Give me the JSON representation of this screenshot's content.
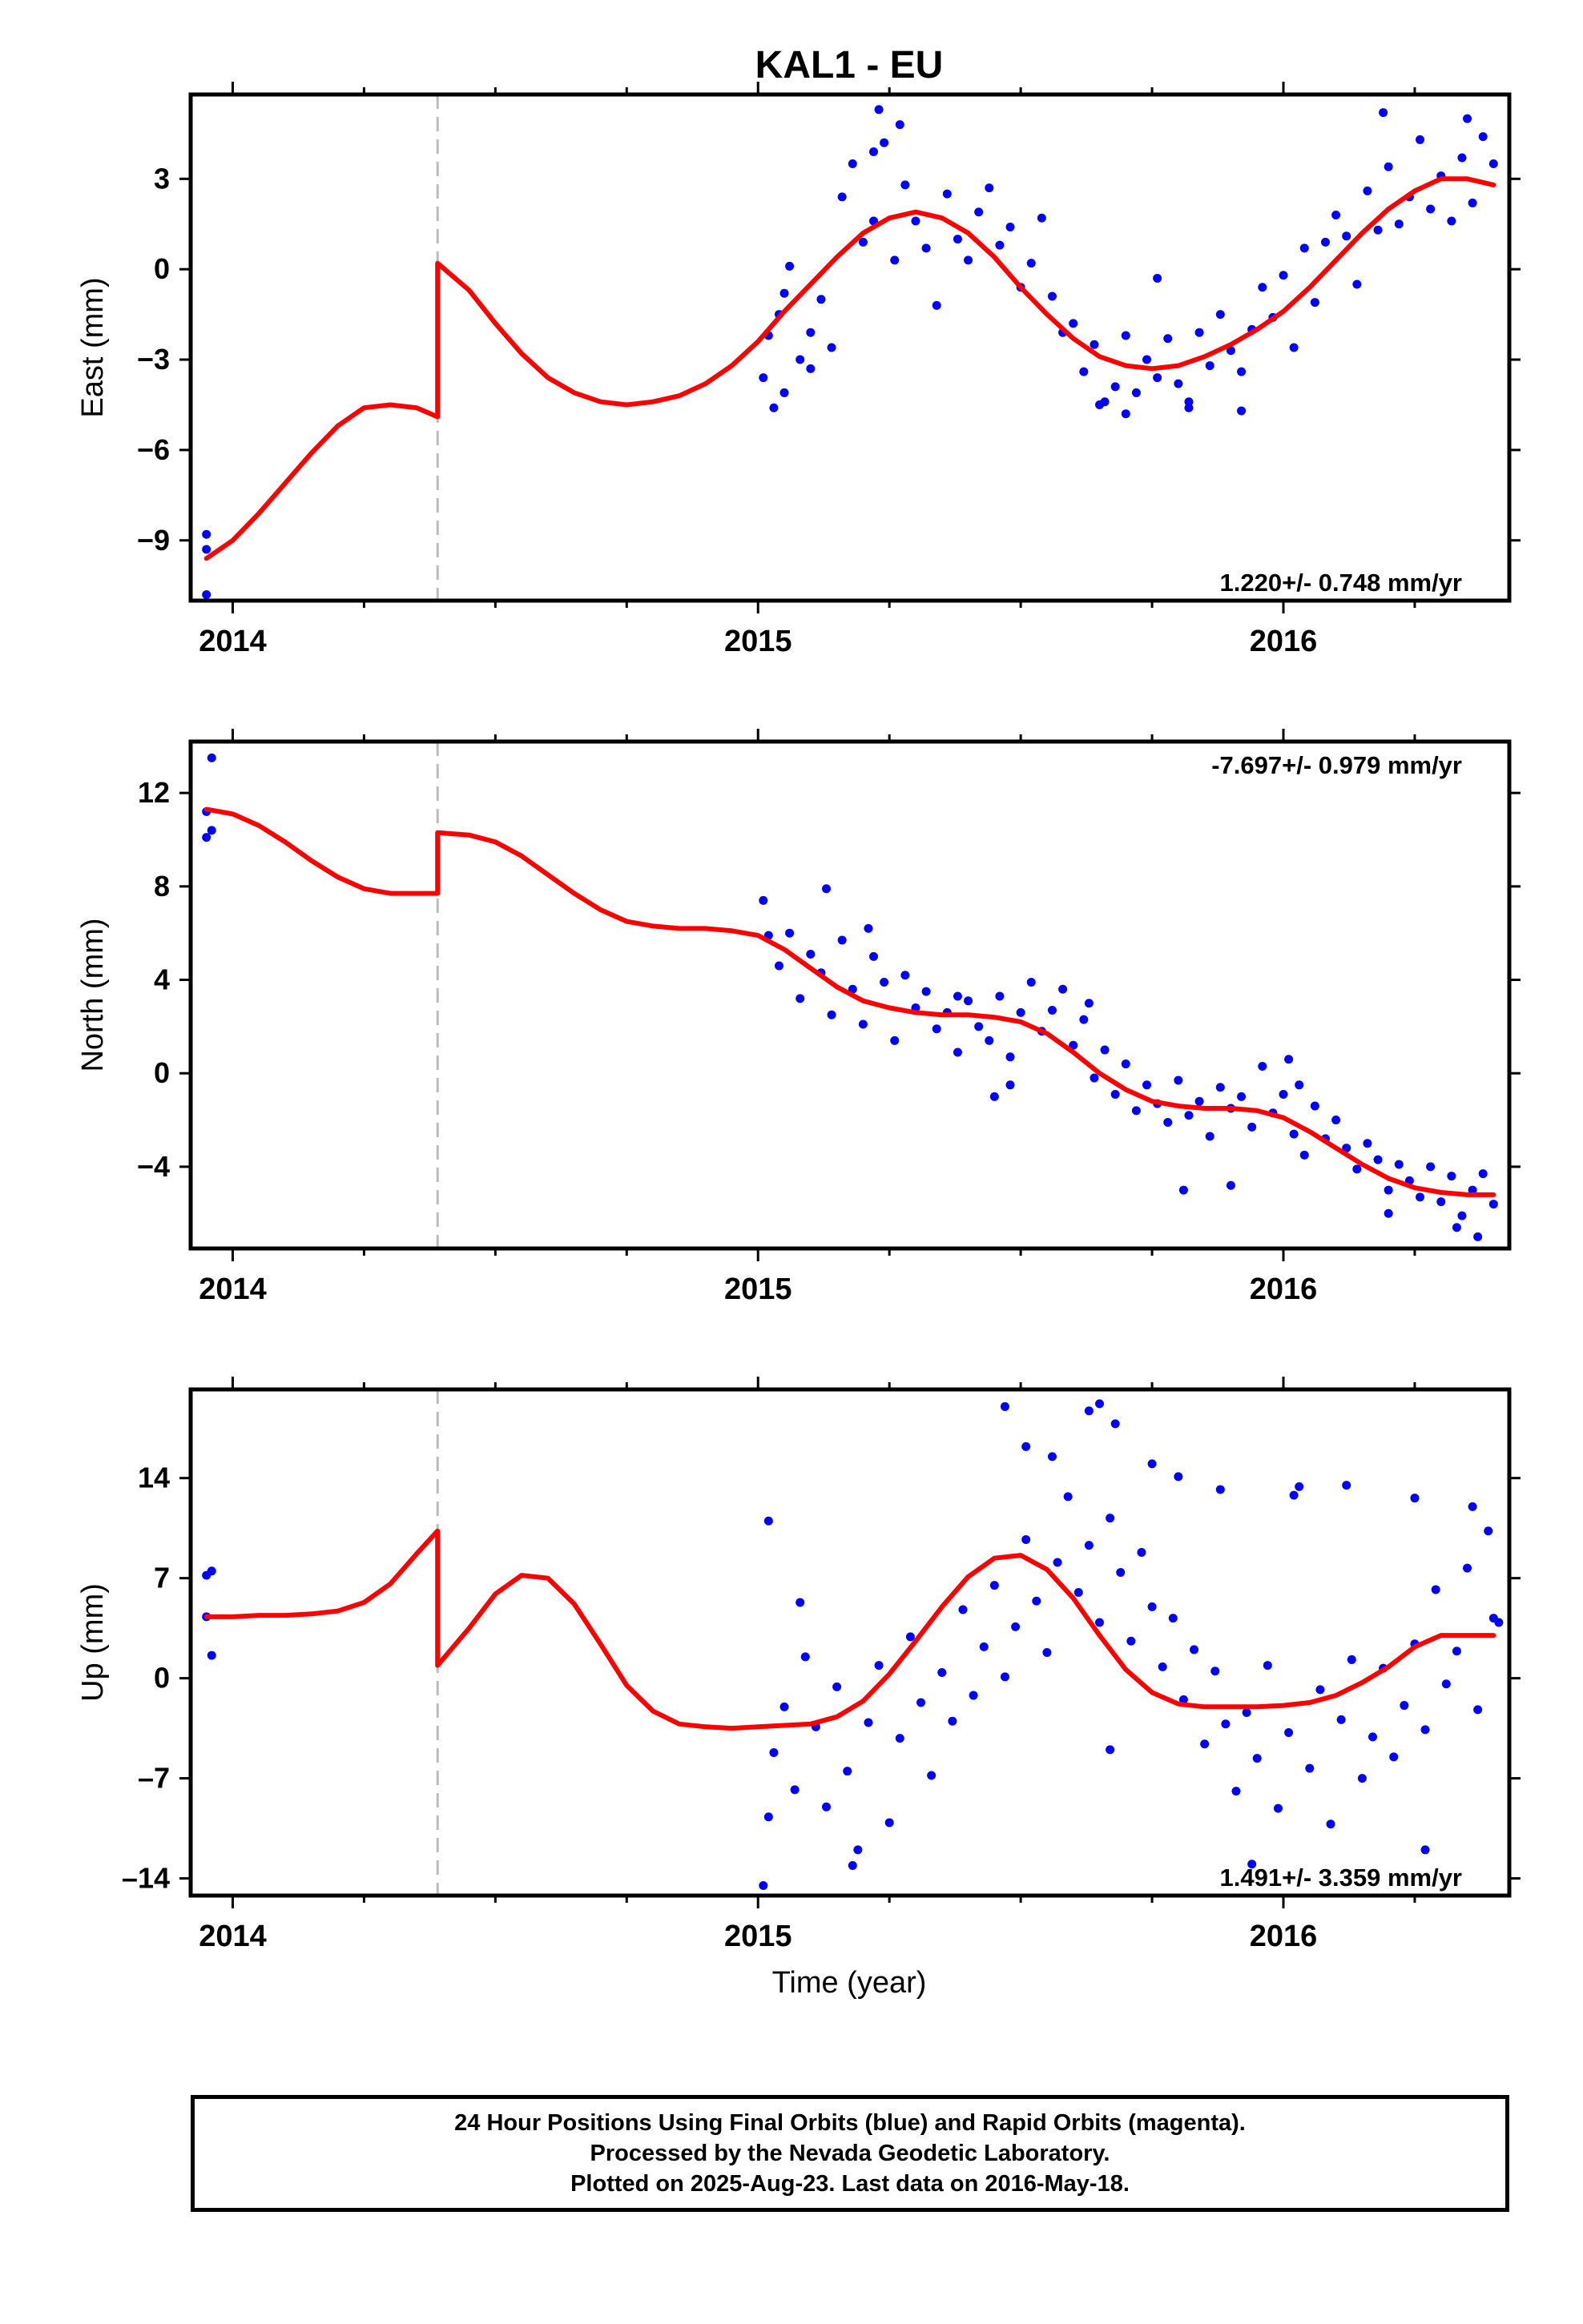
{
  "title": "KAL1 - EU",
  "xlabel": "Time (year)",
  "footer": {
    "line1": "24 Hour Positions Using Final Orbits (blue) and Rapid Orbits (magenta).",
    "line2": "Processed by the Nevada Geodetic Laboratory.",
    "line3": "Plotted on 2025-Aug-23. Last data on 2016-May-18."
  },
  "colors": {
    "final_orbit_points": "#0000ff",
    "model_fit": "#ff0000",
    "equipment_change_line": "#bbbbbb",
    "frame": "#000000"
  },
  "chart_data": [
    {
      "type": "scatter",
      "ylabel": "East (mm)",
      "rate_label": "1.220+/- 0.748 mm/yr",
      "rate_position": "bottom-right",
      "xlim": [
        2013.92,
        2016.43
      ],
      "ylim": [
        -11.0,
        5.8
      ],
      "yticks": [
        -9,
        -6,
        -3,
        0,
        3
      ],
      "xticks": [
        2014,
        2015,
        2016
      ],
      "grid": false,
      "offset_epoch": 2014.39,
      "series": [
        {
          "style": "points",
          "color": "#0000ff",
          "x": [
            2013.95,
            2013.95,
            2013.95,
            2015.01,
            2015.02,
            2015.03,
            2015.04,
            2015.05,
            2015.06,
            2015.08,
            2015.1,
            2015.12,
            2015.14,
            2015.16,
            2015.18,
            2015.2,
            2015.22,
            2015.24,
            2015.26,
            2015.28,
            2015.3,
            2015.32,
            2015.34,
            2015.36,
            2015.38,
            2015.4,
            2015.42,
            2015.44,
            2015.46,
            2015.48,
            2015.5,
            2015.52,
            2015.54,
            2015.56,
            2015.58,
            2015.6,
            2015.62,
            2015.64,
            2015.66,
            2015.68,
            2015.7,
            2015.72,
            2015.74,
            2015.76,
            2015.78,
            2015.8,
            2015.82,
            2015.84,
            2015.86,
            2015.88,
            2015.9,
            2015.92,
            2015.94,
            2015.96,
            2015.98,
            2016.0,
            2016.02,
            2016.04,
            2016.06,
            2016.08,
            2016.1,
            2016.12,
            2016.14,
            2016.16,
            2016.18,
            2016.2,
            2016.22,
            2016.24,
            2016.26,
            2016.28,
            2016.3,
            2016.32,
            2016.34,
            2016.36,
            2016.38,
            2016.4,
            2015.23,
            2015.27,
            2015.22,
            2015.76,
            2016.19,
            2016.35,
            2015.65,
            2015.7,
            2015.82,
            2015.92,
            2015.05,
            2015.1
          ],
          "y": [
            -10.8,
            -8.8,
            -9.3,
            -3.6,
            -2.2,
            -4.6,
            -1.5,
            -0.8,
            0.1,
            -3.0,
            -2.1,
            -1.0,
            -2.6,
            2.4,
            3.5,
            0.9,
            1.6,
            4.2,
            0.3,
            2.8,
            1.6,
            0.7,
            -1.2,
            2.5,
            1.0,
            0.3,
            1.9,
            2.7,
            0.8,
            1.4,
            -0.6,
            0.2,
            1.7,
            -0.9,
            -2.1,
            -1.8,
            -3.4,
            -2.5,
            -4.4,
            -3.9,
            -2.2,
            -4.1,
            -3.0,
            -3.6,
            -2.3,
            -3.8,
            -4.4,
            -2.1,
            -3.2,
            -1.5,
            -2.7,
            -3.4,
            -2.0,
            -0.6,
            -1.6,
            -0.2,
            -2.6,
            0.7,
            -1.1,
            0.9,
            1.8,
            1.1,
            -0.5,
            2.6,
            1.3,
            3.4,
            1.5,
            2.4,
            4.3,
            2.0,
            3.1,
            1.6,
            3.7,
            2.2,
            4.4,
            3.5,
            5.3,
            4.8,
            3.9,
            -0.3,
            5.2,
            5.0,
            -4.5,
            -4.8,
            -4.6,
            -4.7,
            -4.1,
            -3.3
          ]
        },
        {
          "style": "line",
          "color": "#ff0000",
          "x": [
            2013.95,
            2014.0,
            2014.05,
            2014.1,
            2014.15,
            2014.2,
            2014.25,
            2014.3,
            2014.35,
            2014.39,
            2014.39,
            2014.45,
            2014.5,
            2014.55,
            2014.6,
            2014.65,
            2014.7,
            2014.75,
            2014.8,
            2014.85,
            2014.9,
            2014.95,
            2015.0,
            2015.05,
            2015.1,
            2015.15,
            2015.2,
            2015.25,
            2015.3,
            2015.35,
            2015.4,
            2015.45,
            2015.5,
            2015.55,
            2015.6,
            2015.65,
            2015.7,
            2015.75,
            2015.8,
            2015.85,
            2015.9,
            2015.95,
            2016.0,
            2016.05,
            2016.1,
            2016.15,
            2016.2,
            2016.25,
            2016.3,
            2016.35,
            2016.4
          ],
          "y": [
            -9.6,
            -9.0,
            -8.1,
            -7.1,
            -6.1,
            -5.2,
            -4.6,
            -4.5,
            -4.6,
            -4.9,
            0.2,
            -0.7,
            -1.8,
            -2.8,
            -3.6,
            -4.1,
            -4.4,
            -4.5,
            -4.4,
            -4.2,
            -3.8,
            -3.2,
            -2.4,
            -1.4,
            -0.5,
            0.4,
            1.2,
            1.7,
            1.9,
            1.7,
            1.2,
            0.4,
            -0.6,
            -1.5,
            -2.3,
            -2.9,
            -3.2,
            -3.3,
            -3.2,
            -2.9,
            -2.5,
            -2.0,
            -1.4,
            -0.6,
            0.3,
            1.2,
            2.0,
            2.6,
            3.0,
            3.0,
            2.8
          ]
        }
      ]
    },
    {
      "type": "scatter",
      "ylabel": "North (mm)",
      "rate_label": "-7.697+/- 0.979 mm/yr",
      "rate_position": "top-right",
      "xlim": [
        2013.92,
        2016.43
      ],
      "ylim": [
        -7.5,
        14.2
      ],
      "yticks": [
        -4,
        0,
        4,
        8,
        12
      ],
      "xticks": [
        2014,
        2015,
        2016
      ],
      "grid": false,
      "offset_epoch": 2014.39,
      "series": [
        {
          "style": "points",
          "color": "#0000ff",
          "x": [
            2013.95,
            2013.95,
            2013.96,
            2013.96,
            2015.01,
            2015.02,
            2015.04,
            2015.06,
            2015.08,
            2015.1,
            2015.12,
            2015.14,
            2015.16,
            2015.18,
            2015.2,
            2015.22,
            2015.24,
            2015.26,
            2015.28,
            2015.3,
            2015.32,
            2015.34,
            2015.36,
            2015.38,
            2015.4,
            2015.42,
            2015.44,
            2015.46,
            2015.48,
            2015.5,
            2015.52,
            2015.54,
            2015.56,
            2015.58,
            2015.6,
            2015.62,
            2015.64,
            2015.66,
            2015.68,
            2015.7,
            2015.72,
            2015.74,
            2015.76,
            2015.78,
            2015.8,
            2015.82,
            2015.84,
            2015.86,
            2015.88,
            2015.9,
            2015.92,
            2015.94,
            2015.96,
            2015.98,
            2016.0,
            2016.02,
            2016.04,
            2016.06,
            2016.08,
            2016.1,
            2016.12,
            2016.14,
            2016.16,
            2016.18,
            2016.2,
            2016.22,
            2016.24,
            2016.26,
            2016.28,
            2016.3,
            2016.32,
            2016.34,
            2016.36,
            2016.38,
            2016.4,
            2015.13,
            2015.21,
            2015.48,
            2015.63,
            2015.81,
            2015.9,
            2016.03,
            2016.2,
            2016.33,
            2016.37,
            2015.45,
            2015.38,
            2016.01
          ],
          "y": [
            11.2,
            10.1,
            13.5,
            10.4,
            7.4,
            5.9,
            4.6,
            6.0,
            3.2,
            5.1,
            4.3,
            2.5,
            5.7,
            3.6,
            2.1,
            5.0,
            3.9,
            1.4,
            4.2,
            2.8,
            3.5,
            1.9,
            2.6,
            0.9,
            3.1,
            2.0,
            1.4,
            3.3,
            0.7,
            2.6,
            3.9,
            1.8,
            2.7,
            3.6,
            1.2,
            2.3,
            -0.2,
            1.0,
            -0.9,
            0.4,
            -1.6,
            -0.5,
            -1.3,
            -2.1,
            -0.3,
            -1.8,
            -1.2,
            -2.7,
            -0.6,
            -1.5,
            -1.0,
            -2.3,
            0.3,
            -1.7,
            -0.9,
            -2.6,
            -3.5,
            -1.4,
            -2.8,
            -2.0,
            -3.2,
            -4.1,
            -3.0,
            -3.7,
            -5.0,
            -3.9,
            -4.6,
            -5.3,
            -4.0,
            -5.5,
            -4.4,
            -6.1,
            -5.0,
            -4.3,
            -5.6,
            7.9,
            6.2,
            -0.5,
            3.0,
            -5.0,
            -4.8,
            -0.5,
            -6.0,
            -6.6,
            -7.0,
            -1.0,
            3.3,
            0.6
          ]
        },
        {
          "style": "line",
          "color": "#ff0000",
          "x": [
            2013.95,
            2014.0,
            2014.05,
            2014.1,
            2014.15,
            2014.2,
            2014.25,
            2014.3,
            2014.35,
            2014.39,
            2014.39,
            2014.45,
            2014.5,
            2014.55,
            2014.6,
            2014.65,
            2014.7,
            2014.75,
            2014.8,
            2014.85,
            2014.9,
            2014.95,
            2015.0,
            2015.05,
            2015.1,
            2015.15,
            2015.2,
            2015.25,
            2015.3,
            2015.35,
            2015.4,
            2015.45,
            2015.5,
            2015.55,
            2015.6,
            2015.65,
            2015.7,
            2015.75,
            2015.8,
            2015.85,
            2015.9,
            2015.95,
            2016.0,
            2016.05,
            2016.1,
            2016.15,
            2016.2,
            2016.25,
            2016.3,
            2016.35,
            2016.4
          ],
          "y": [
            11.3,
            11.1,
            10.6,
            9.9,
            9.1,
            8.4,
            7.9,
            7.7,
            7.7,
            7.7,
            10.3,
            10.2,
            9.9,
            9.3,
            8.5,
            7.7,
            7.0,
            6.5,
            6.3,
            6.2,
            6.2,
            6.1,
            5.9,
            5.3,
            4.5,
            3.7,
            3.1,
            2.8,
            2.6,
            2.5,
            2.5,
            2.4,
            2.2,
            1.7,
            0.9,
            0.0,
            -0.7,
            -1.2,
            -1.4,
            -1.5,
            -1.5,
            -1.6,
            -1.9,
            -2.5,
            -3.2,
            -3.9,
            -4.5,
            -4.9,
            -5.1,
            -5.2,
            -5.2
          ]
        }
      ]
    },
    {
      "type": "scatter",
      "ylabel": "Up (mm)",
      "rate_label": "1.491+/- 3.359 mm/yr",
      "rate_position": "bottom-right",
      "xlim": [
        2013.92,
        2016.43
      ],
      "ylim": [
        -15.2,
        20.2
      ],
      "yticks": [
        -14,
        -7,
        0,
        7,
        14
      ],
      "ytick_labels": [
        "–14",
        "–7",
        "0",
        "7",
        "14"
      ],
      "xticks": [
        2014,
        2015,
        2016
      ],
      "grid": false,
      "offset_epoch": 2014.39,
      "series": [
        {
          "style": "points",
          "color": "#0000ff",
          "x": [
            2013.95,
            2013.95,
            2013.96,
            2013.96,
            2015.01,
            2015.02,
            2015.03,
            2015.05,
            2015.07,
            2015.09,
            2015.11,
            2015.13,
            2015.15,
            2015.17,
            2015.19,
            2015.21,
            2015.23,
            2015.25,
            2015.27,
            2015.29,
            2015.31,
            2015.33,
            2015.35,
            2015.37,
            2015.39,
            2015.41,
            2015.43,
            2015.45,
            2015.47,
            2015.49,
            2015.51,
            2015.53,
            2015.55,
            2015.57,
            2015.59,
            2015.61,
            2015.63,
            2015.65,
            2015.67,
            2015.69,
            2015.71,
            2015.73,
            2015.75,
            2015.77,
            2015.79,
            2015.81,
            2015.83,
            2015.85,
            2015.87,
            2015.89,
            2015.91,
            2015.93,
            2015.95,
            2015.97,
            2015.99,
            2016.01,
            2016.03,
            2016.05,
            2016.07,
            2016.09,
            2016.11,
            2016.13,
            2016.15,
            2016.17,
            2016.19,
            2016.21,
            2016.23,
            2016.25,
            2016.27,
            2016.29,
            2016.31,
            2016.33,
            2016.35,
            2016.37,
            2016.39,
            2016.41,
            2015.02,
            2015.08,
            2015.18,
            2015.47,
            2015.51,
            2015.56,
            2015.63,
            2015.65,
            2015.68,
            2015.75,
            2015.8,
            2015.88,
            2016.02,
            2016.12,
            2016.25,
            2016.36,
            2016.4,
            2015.67,
            2015.94,
            2016.27
          ],
          "y": [
            4.3,
            7.2,
            7.5,
            1.6,
            -14.5,
            -9.7,
            -5.2,
            -2.0,
            -7.8,
            1.5,
            -3.4,
            -9.0,
            -0.6,
            -6.5,
            -12.0,
            -3.1,
            0.9,
            -10.1,
            -4.2,
            2.9,
            -1.7,
            -6.8,
            0.4,
            -3.0,
            4.8,
            -1.2,
            2.2,
            6.5,
            0.1,
            3.6,
            9.7,
            5.4,
            1.8,
            8.1,
            12.7,
            6.0,
            9.3,
            3.9,
            11.2,
            7.4,
            2.6,
            8.8,
            5.0,
            0.8,
            4.2,
            -1.5,
            2.0,
            -4.6,
            0.5,
            -3.2,
            -7.9,
            -2.4,
            -5.6,
            0.9,
            -9.1,
            -3.8,
            13.4,
            -6.3,
            -0.8,
            -10.2,
            -2.9,
            1.3,
            -7.0,
            -4.1,
            0.7,
            -5.5,
            -1.9,
            2.4,
            -3.6,
            6.2,
            -0.4,
            1.9,
            7.7,
            -2.2,
            10.3,
            3.9,
            11.0,
            5.3,
            -13.1,
            19.0,
            16.2,
            15.5,
            18.7,
            19.2,
            17.8,
            15.0,
            14.1,
            13.2,
            12.8,
            13.5,
            12.6,
            12.0,
            4.2,
            -5.0,
            -13.0,
            -12.0
          ]
        },
        {
          "style": "line",
          "color": "#ff0000",
          "x": [
            2013.95,
            2014.0,
            2014.05,
            2014.1,
            2014.15,
            2014.2,
            2014.25,
            2014.3,
            2014.35,
            2014.39,
            2014.39,
            2014.45,
            2014.5,
            2014.55,
            2014.6,
            2014.65,
            2014.7,
            2014.75,
            2014.8,
            2014.85,
            2014.9,
            2014.95,
            2015.0,
            2015.05,
            2015.1,
            2015.15,
            2015.2,
            2015.25,
            2015.3,
            2015.35,
            2015.4,
            2015.45,
            2015.5,
            2015.55,
            2015.6,
            2015.65,
            2015.7,
            2015.75,
            2015.8,
            2015.85,
            2015.9,
            2015.95,
            2016.0,
            2016.05,
            2016.1,
            2016.15,
            2016.2,
            2016.25,
            2016.3,
            2016.35,
            2016.4
          ],
          "y": [
            4.3,
            4.3,
            4.4,
            4.4,
            4.5,
            4.7,
            5.3,
            6.6,
            8.7,
            10.3,
            0.9,
            3.5,
            5.9,
            7.2,
            7.0,
            5.2,
            2.4,
            -0.5,
            -2.3,
            -3.2,
            -3.4,
            -3.5,
            -3.4,
            -3.3,
            -3.2,
            -2.7,
            -1.6,
            0.3,
            2.6,
            5.0,
            7.1,
            8.4,
            8.6,
            7.6,
            5.6,
            3.0,
            0.6,
            -1.0,
            -1.8,
            -2.0,
            -2.0,
            -2.0,
            -1.9,
            -1.7,
            -1.2,
            -0.3,
            0.8,
            2.2,
            3.0,
            3.0,
            3.0
          ]
        }
      ]
    }
  ]
}
